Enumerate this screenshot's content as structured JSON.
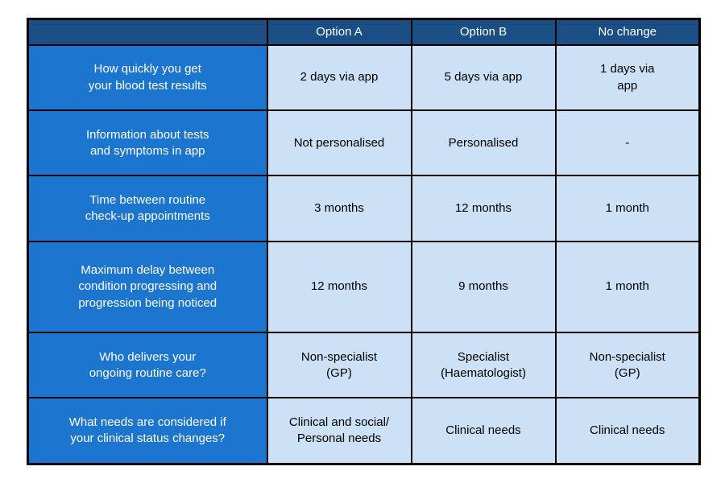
{
  "table": {
    "header": {
      "corner": "",
      "columns": [
        "Option A",
        "Option B",
        "No change"
      ]
    },
    "rows": [
      {
        "label": "How quickly you get\nyour blood test results",
        "option_a": "2 days via app",
        "option_b": "5 days via app",
        "no_change": "1 days via\napp"
      },
      {
        "label": "Information about tests\nand symptoms in app",
        "option_a": "Not personalised",
        "option_b": "Personalised",
        "no_change": "-"
      },
      {
        "label": "Time between routine\ncheck-up appointments",
        "option_a": "3 months",
        "option_b": "12 months",
        "no_change": "1 month"
      },
      {
        "label": "Maximum delay between\ncondition progressing and\nprogression being noticed",
        "option_a": "12 months",
        "option_b": "9 months",
        "no_change": "1 month"
      },
      {
        "label": "Who delivers your\nongoing routine care?",
        "option_a": "Non-specialist\n(GP)",
        "option_b": "Specialist\n(Haematologist)",
        "no_change": "Non-specialist\n(GP)"
      },
      {
        "label": "What needs are considered if\nyour clinical status changes?",
        "option_a": "Clinical and social/\nPersonal needs",
        "option_b": "Clinical needs",
        "no_change": "Clinical needs"
      }
    ]
  },
  "colors": {
    "header_bg": "#1A4E85",
    "row_label_bg": "#1C75CE",
    "value_cell_bg": "#CCE0F6",
    "border": "#000000",
    "header_text": "#ffffff",
    "label_text": "#ffffff",
    "value_text": "#000000"
  }
}
